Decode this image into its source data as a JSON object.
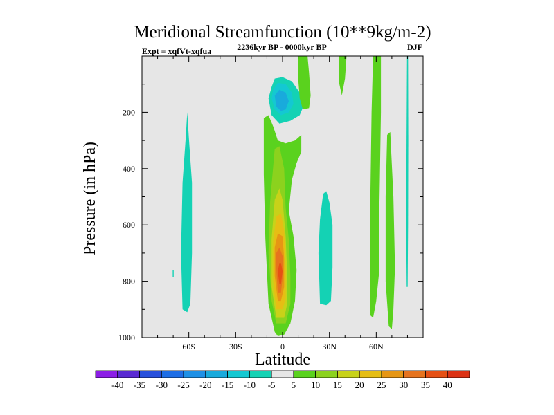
{
  "chart_data": {
    "type": "contour",
    "title": "Meridional Streamfunction (10**9kg/m-2)",
    "subtitle_left": "Expt = xqfVt-xqfua",
    "subtitle_center": "2236kyr BP - 0000kyr BP",
    "subtitle_right": "DJF",
    "xlabel": "Latitude",
    "ylabel": "Pressure (in hPa)",
    "xlim": [
      -90,
      90
    ],
    "ylim": [
      1000,
      0
    ],
    "xticks": [
      {
        "value": -60,
        "label": "60S"
      },
      {
        "value": -30,
        "label": "30S"
      },
      {
        "value": 0,
        "label": "0"
      },
      {
        "value": 30,
        "label": "30N"
      },
      {
        "value": 60,
        "label": "60N"
      }
    ],
    "yticks": [
      {
        "value": 200,
        "label": "200"
      },
      {
        "value": 400,
        "label": "400"
      },
      {
        "value": 600,
        "label": "600"
      },
      {
        "value": 800,
        "label": "800"
      },
      {
        "value": 1000,
        "label": "1000"
      }
    ],
    "background_color": "#e6e6e6",
    "colorbar": {
      "labels": [
        "-40",
        "-35",
        "-30",
        "-25",
        "-20",
        "-15",
        "-10",
        "-5",
        "5",
        "10",
        "15",
        "20",
        "25",
        "30",
        "35",
        "40"
      ],
      "colors": [
        "#8c1ee6",
        "#5a2ad2",
        "#2850dc",
        "#1e6ee6",
        "#1e90e6",
        "#19aadc",
        "#14c8d2",
        "#14d2b4",
        "#e6e6e6",
        "#5ad21e",
        "#8cd21e",
        "#c8d219",
        "#e6be14",
        "#e69614",
        "#e6731e",
        "#e65014",
        "#dc3214"
      ]
    },
    "features": [
      {
        "name": "northern-hadley-positive-cell",
        "level": 5,
        "color": "#5ad21e",
        "polygon": [
          [
            -5,
            980
          ],
          [
            -9,
            880
          ],
          [
            -11,
            650
          ],
          [
            -12,
            420
          ],
          [
            -12,
            220
          ],
          [
            -9,
            210
          ],
          [
            -6,
            250
          ],
          [
            -3,
            300
          ],
          [
            2,
            310
          ],
          [
            8,
            300
          ],
          [
            12,
            280
          ],
          [
            12,
            340
          ],
          [
            9,
            380
          ],
          [
            6,
            440
          ],
          [
            4,
            550
          ],
          [
            7,
            640
          ],
          [
            9,
            760
          ],
          [
            8,
            870
          ],
          [
            5,
            950
          ],
          [
            1,
            990
          ],
          [
            -3,
            995
          ]
        ]
      },
      {
        "name": "hadley-cell-10",
        "level": 10,
        "color": "#8cd21e",
        "polygon": [
          [
            -4,
            950
          ],
          [
            -7,
            870
          ],
          [
            -9,
            700
          ],
          [
            -8,
            520
          ],
          [
            -5,
            330
          ],
          [
            -2,
            320
          ],
          [
            1,
            400
          ],
          [
            2,
            540
          ],
          [
            4,
            650
          ],
          [
            5,
            780
          ],
          [
            5,
            880
          ],
          [
            2,
            950
          ]
        ]
      },
      {
        "name": "hadley-cell-15",
        "level": 15,
        "color": "#c8d219",
        "polygon": [
          [
            -4,
            930
          ],
          [
            -7,
            820
          ],
          [
            -7,
            650
          ],
          [
            -5,
            510
          ],
          [
            -2,
            470
          ],
          [
            0,
            510
          ],
          [
            2,
            640
          ],
          [
            3,
            780
          ],
          [
            3,
            880
          ],
          [
            1,
            930
          ]
        ]
      },
      {
        "name": "hadley-cell-20",
        "level": 20,
        "color": "#e6be14",
        "polygon": [
          [
            -4,
            900
          ],
          [
            -6,
            800
          ],
          [
            -6,
            660
          ],
          [
            -4,
            570
          ],
          [
            -1,
            560
          ],
          [
            1,
            620
          ],
          [
            2,
            760
          ],
          [
            2,
            860
          ],
          [
            0,
            900
          ]
        ]
      },
      {
        "name": "hadley-cell-25",
        "level": 25,
        "color": "#e69614",
        "polygon": [
          [
            -3,
            870
          ],
          [
            -5,
            780
          ],
          [
            -5,
            680
          ],
          [
            -3,
            630
          ],
          [
            0,
            640
          ],
          [
            1,
            720
          ],
          [
            1,
            820
          ],
          [
            -1,
            870
          ]
        ]
      },
      {
        "name": "hadley-cell-30",
        "level": 30,
        "color": "#e6731e",
        "polygon": [
          [
            -3,
            840
          ],
          [
            -4,
            760
          ],
          [
            -4,
            700
          ],
          [
            -2,
            680
          ],
          [
            0,
            710
          ],
          [
            0,
            790
          ],
          [
            -1,
            840
          ]
        ]
      },
      {
        "name": "hadley-cell-35",
        "level": 35,
        "color": "#e65014",
        "polygon": [
          [
            -2,
            810
          ],
          [
            -3,
            765
          ],
          [
            -2,
            735
          ],
          [
            -1,
            735
          ],
          [
            0,
            765
          ],
          [
            -1,
            810
          ]
        ]
      },
      {
        "name": "upper-negative-cell-5",
        "level": -5,
        "color": "#14d2b4",
        "polygon": [
          [
            -7,
            110
          ],
          [
            -5,
            80
          ],
          [
            0,
            75
          ],
          [
            6,
            90
          ],
          [
            11,
            130
          ],
          [
            14,
            170
          ],
          [
            11,
            210
          ],
          [
            5,
            230
          ],
          [
            -2,
            240
          ],
          [
            -7,
            210
          ],
          [
            -9,
            150
          ]
        ]
      },
      {
        "name": "upper-negative-cell-10",
        "level": -10,
        "color": "#14c8d2",
        "polygon": [
          [
            -6,
            120
          ],
          [
            -3,
            95
          ],
          [
            2,
            100
          ],
          [
            6,
            130
          ],
          [
            7,
            170
          ],
          [
            4,
            200
          ],
          [
            -1,
            210
          ],
          [
            -5,
            190
          ],
          [
            -7,
            150
          ]
        ]
      },
      {
        "name": "upper-negative-cell-15",
        "level": -15,
        "color": "#19aadc",
        "polygon": [
          [
            -5,
            140
          ],
          [
            -2,
            120
          ],
          [
            2,
            130
          ],
          [
            4,
            160
          ],
          [
            2,
            190
          ],
          [
            -1,
            195
          ],
          [
            -4,
            180
          ]
        ]
      },
      {
        "name": "southern-negative-column",
        "level": -5,
        "color": "#14d2b4",
        "polygon": [
          [
            -64,
            900
          ],
          [
            -65,
            700
          ],
          [
            -64,
            450
          ],
          [
            -62,
            290
          ],
          [
            -61,
            200
          ],
          [
            -60,
            290
          ],
          [
            -58,
            450
          ],
          [
            -58,
            700
          ],
          [
            -59,
            880
          ],
          [
            -61,
            910
          ]
        ]
      },
      {
        "name": "southern-isolated-mark",
        "level": -5,
        "color": "#14d2b4",
        "polygon": [
          [
            -70.3,
            760
          ],
          [
            -69.7,
            760
          ],
          [
            -69.7,
            785
          ],
          [
            -70.3,
            785
          ]
        ]
      },
      {
        "name": "subtropical-negative-column",
        "level": -5,
        "color": "#14d2b4",
        "polygon": [
          [
            24,
            880
          ],
          [
            23,
            700
          ],
          [
            24,
            580
          ],
          [
            26,
            490
          ],
          [
            28,
            480
          ],
          [
            30,
            520
          ],
          [
            32,
            600
          ],
          [
            32,
            750
          ],
          [
            31,
            870
          ],
          [
            28,
            885
          ]
        ]
      },
      {
        "name": "upper-positive-plume",
        "level": 5,
        "color": "#5ad21e",
        "polygon": [
          [
            10,
            0
          ],
          [
            16,
            0
          ],
          [
            17,
            60
          ],
          [
            18,
            140
          ],
          [
            17,
            185
          ],
          [
            13,
            190
          ],
          [
            11,
            150
          ],
          [
            10,
            80
          ]
        ]
      },
      {
        "name": "northern-thin-band",
        "level": 5,
        "color": "#5ad21e",
        "polygon": [
          [
            36,
            0
          ],
          [
            41,
            0
          ],
          [
            40,
            80
          ],
          [
            38,
            140
          ],
          [
            36,
            90
          ]
        ]
      },
      {
        "name": "midlat-positive-column",
        "level": 5,
        "color": "#5ad21e",
        "polygon": [
          [
            56,
            920
          ],
          [
            56,
            600
          ],
          [
            57,
            200
          ],
          [
            58,
            0
          ],
          [
            63,
            0
          ],
          [
            63,
            200
          ],
          [
            62,
            550
          ],
          [
            62,
            760
          ],
          [
            60,
            870
          ],
          [
            58,
            930
          ]
        ]
      },
      {
        "name": "highlat-positive-column",
        "level": 5,
        "color": "#5ad21e",
        "polygon": [
          [
            68,
            960
          ],
          [
            66,
            800
          ],
          [
            66,
            500
          ],
          [
            67,
            280
          ],
          [
            69,
            270
          ],
          [
            71,
            500
          ],
          [
            72,
            750
          ],
          [
            71,
            900
          ],
          [
            70,
            970
          ]
        ]
      },
      {
        "name": "polar-negative-sliver",
        "level": -5,
        "color": "#14d2b4",
        "polygon": [
          [
            79.5,
            820
          ],
          [
            79.2,
            600
          ],
          [
            79.4,
            300
          ],
          [
            79.7,
            0
          ],
          [
            80.4,
            0
          ],
          [
            80.5,
            300
          ],
          [
            80.4,
            600
          ],
          [
            80.1,
            820
          ]
        ]
      }
    ]
  }
}
